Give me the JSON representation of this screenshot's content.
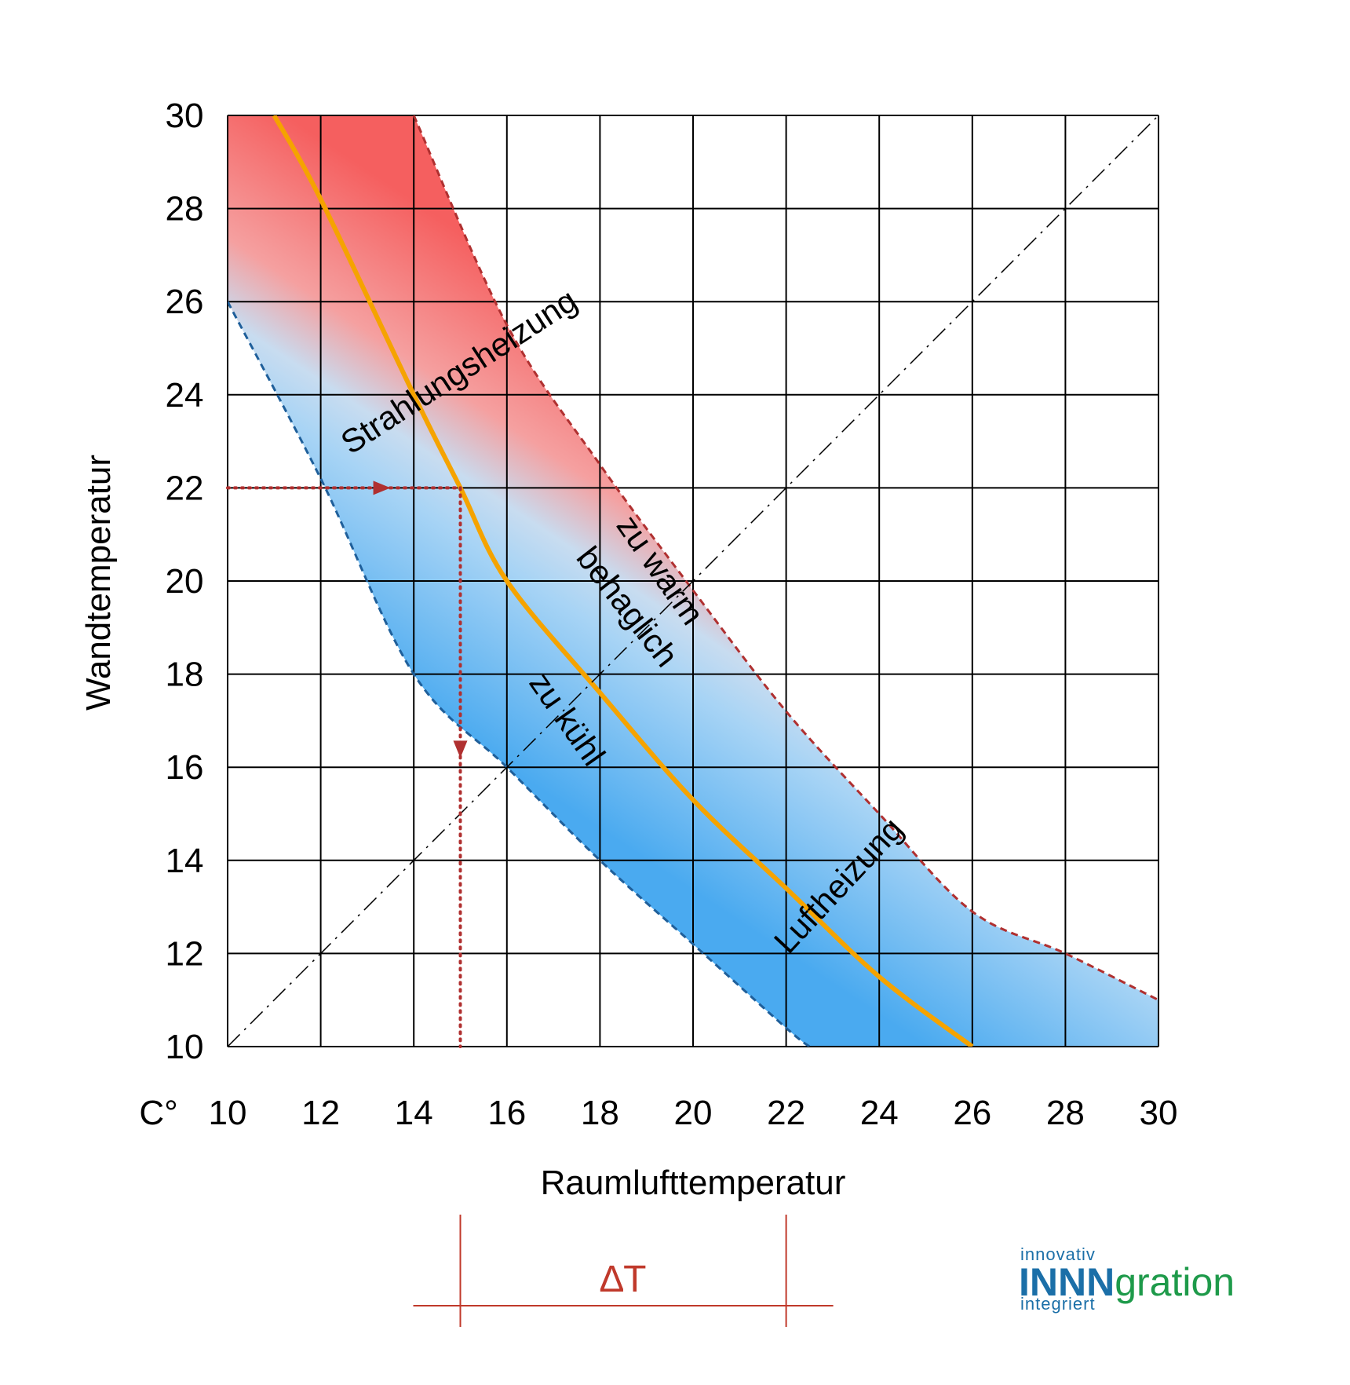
{
  "chart_data": {
    "type": "area",
    "ylabel": "Wandtemperatur",
    "xlabel": "Raumlufttemperatur",
    "unit_label": "C°",
    "xlim": [
      10,
      30
    ],
    "ylim": [
      10,
      30
    ],
    "xticks": [
      10,
      12,
      14,
      16,
      18,
      20,
      22,
      24,
      26,
      28,
      30
    ],
    "yticks": [
      10,
      12,
      14,
      16,
      18,
      20,
      22,
      24,
      26,
      28,
      30
    ],
    "grid": true,
    "series": [
      {
        "name": "behaglich",
        "style": "solid",
        "color": "#f5a300",
        "x": [
          11,
          12,
          14,
          15,
          16,
          18,
          20,
          22,
          24,
          26
        ],
        "y": [
          30,
          28.2,
          24,
          22,
          20,
          17.6,
          15.3,
          13.4,
          11.5,
          10
        ]
      },
      {
        "name": "zu warm",
        "style": "dashed",
        "color": "#b03030",
        "x": [
          14,
          16,
          18,
          20,
          22,
          24,
          26,
          28,
          30
        ],
        "y": [
          30,
          25.5,
          22.5,
          19.8,
          17.2,
          15,
          12.9,
          12,
          11
        ]
      },
      {
        "name": "zu kühl",
        "style": "dashed",
        "color": "#1f5f9a",
        "x": [
          10,
          12,
          14,
          16,
          18,
          20,
          22,
          22.5
        ],
        "y": [
          26,
          22.2,
          18,
          16,
          14,
          12.2,
          10.4,
          10
        ]
      },
      {
        "name": "",
        "style": "dash-dot",
        "color": "#000000",
        "x": [
          10,
          30
        ],
        "y": [
          10,
          30
        ]
      }
    ],
    "example": {
      "wall_temp": 22,
      "air_temp": 15,
      "color": "#b03030"
    },
    "labels": {
      "radiant": "Strahlungsheizung",
      "air": "Luftheizung",
      "comfortable": "behaglich",
      "warm": "zu warm",
      "cool": "zu kühl"
    },
    "delta_label": "∆T",
    "delta_range": [
      15,
      22
    ],
    "colors": {
      "warm": "#f55f5f",
      "mid": "#a8d4f5",
      "cool": "#4aaaf0",
      "grid": "#000000"
    }
  },
  "logo": {
    "top": "innovativ",
    "brand_part1": "INNN",
    "brand_part2": "gration",
    "bottom": "integriert"
  }
}
